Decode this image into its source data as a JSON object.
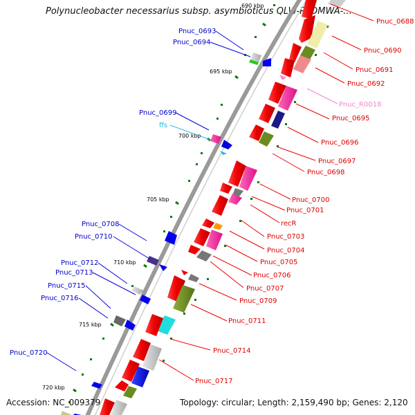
{
  "title": "Polynucleobacter necessarius subsp. asymbioticus QLW-P1DMWA-...",
  "footer": {
    "accession": "Accession: NC_009379",
    "topology": "Topology: circular; Length: 2,159,490 bp; Genes: 2,120"
  },
  "ticks": [
    "690 kbp",
    "695 kbp",
    "700 kbp",
    "705 kbp",
    "710 kbp",
    "715 kbp",
    "720 kbp"
  ],
  "labels_left": [
    "Pnuc_0693",
    "Pnuc_0694",
    "Pnuc_0699",
    "ffs",
    "Pnuc_0708",
    "Pnuc_0710",
    "Pnuc_0712",
    "Pnuc_0713",
    "Pnuc_0715",
    "Pnuc_0716",
    "Pnuc_0720"
  ],
  "labels_right": [
    "Pnuc_0688",
    "Pnuc_0690",
    "Pnuc_0691",
    "Pnuc_0692",
    "Pnuc_R0018",
    "Pnuc_0695",
    "Pnuc_0696",
    "Pnuc_0697",
    "Pnuc_0698",
    "Pnuc_0700",
    "Pnuc_0701",
    "recR",
    "Pnuc_0703",
    "Pnuc_0704",
    "Pnuc_0705",
    "Pnuc_0706",
    "Pnuc_0707",
    "Pnuc_0709",
    "Pnuc_0711",
    "Pnuc_0714",
    "Pnuc_0717"
  ],
  "colors": {
    "forward_label": "#dd0000",
    "reverse_label": "#0000cc",
    "rna_label": "#00aacc",
    "rrna_label": "#ee88cc",
    "backbone": "#888888",
    "tick_mark": "#007700"
  }
}
